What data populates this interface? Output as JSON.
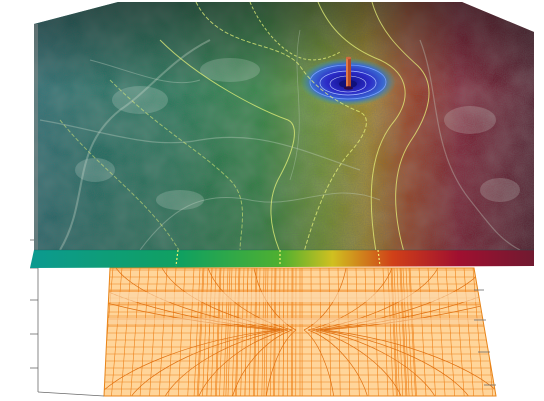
{
  "scene": {
    "colors": {
      "background": "#ffffff",
      "field_low": "#1f8a8a",
      "field_mid_green": "#22a04a",
      "field_yellow": "#c8c020",
      "field_red": "#b01028",
      "field_dark": "#2a1a22",
      "contour": "#e8f070",
      "well_core": "#1a1aa8",
      "well_pipe": "#c0502a",
      "grid_line": "#ee8018",
      "grid_fill": "#ffc880",
      "axis": "#707070"
    },
    "icons": {
      "well": "well-marker-icon"
    }
  }
}
